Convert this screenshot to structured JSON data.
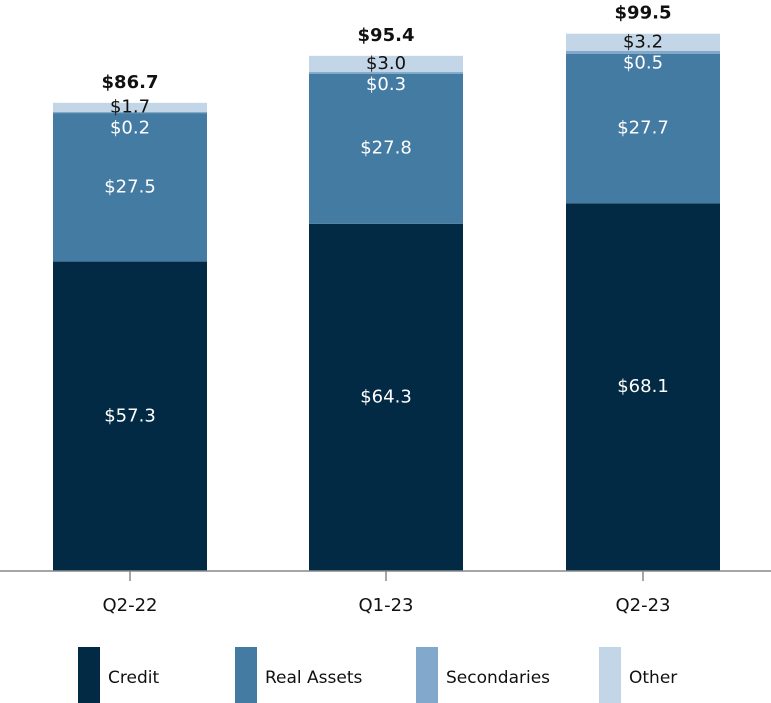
{
  "chart_data": {
    "type": "stacked_bar",
    "categories": [
      "Q2-22",
      "Q1-23",
      "Q2-23"
    ],
    "series": [
      {
        "name": "Credit",
        "color": "#032a44",
        "label_color": "#ffffff",
        "values": [
          57.3,
          64.3,
          68.1
        ],
        "value_labels": [
          "$57.3",
          "$64.3",
          "$68.1"
        ]
      },
      {
        "name": "Real Assets",
        "color": "#447ba2",
        "label_color": "#ffffff",
        "values": [
          27.5,
          27.8,
          27.7
        ],
        "value_labels": [
          "$27.5",
          "$27.8",
          "$27.7"
        ]
      },
      {
        "name": "Secondaries",
        "color": "#82a9cb",
        "label_color": "#ffffff",
        "values": [
          0.2,
          0.3,
          0.5
        ],
        "value_labels": [
          "$0.2",
          "$0.3",
          "$0.5"
        ]
      },
      {
        "name": "Other",
        "color": "#c2d6e7",
        "label_color": "#111111",
        "values": [
          1.7,
          3.0,
          3.2
        ],
        "value_labels": [
          "$1.7",
          "$3.0",
          "$3.2"
        ]
      }
    ],
    "totals": [
      86.7,
      95.4,
      99.5
    ],
    "total_labels": [
      "$86.7",
      "$95.4",
      "$99.5"
    ],
    "ylim": [
      0,
      100
    ],
    "legend": "bottom"
  }
}
